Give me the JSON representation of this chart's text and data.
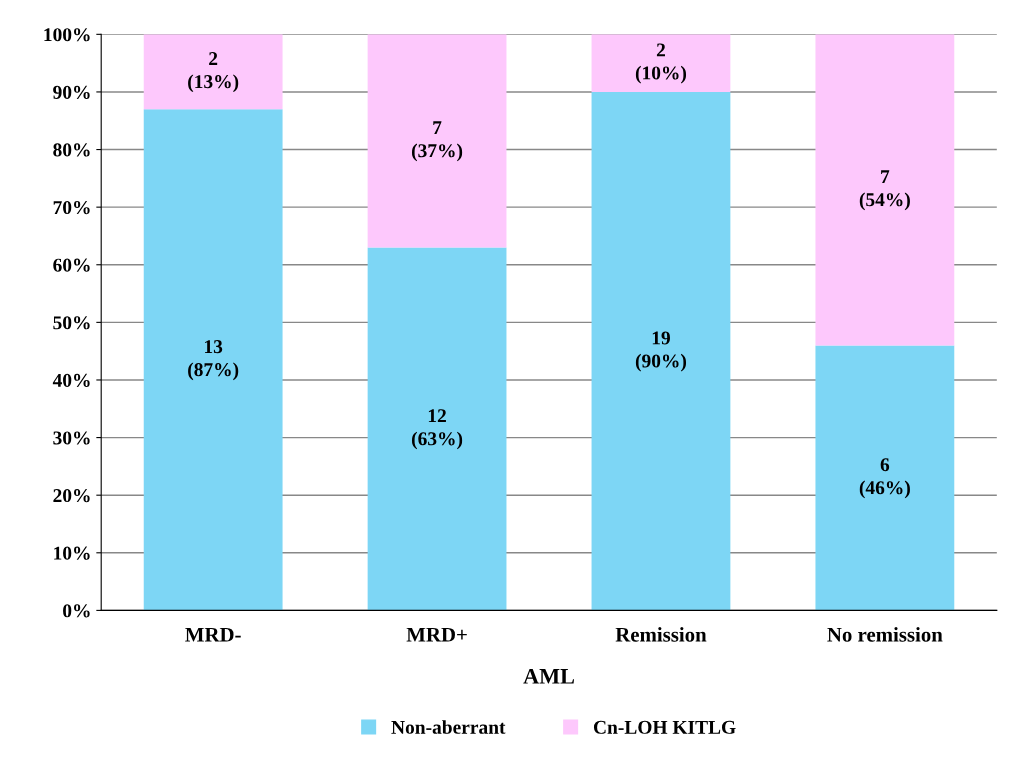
{
  "chart_data": {
    "type": "bar",
    "stacked": true,
    "xlabel": "AML",
    "categories": [
      "MRD-",
      "MRD+",
      "Remission",
      "No remission"
    ],
    "series": [
      {
        "name": "Non-aberrant",
        "color": "#7dd6f5",
        "values": [
          87,
          63,
          90,
          46
        ],
        "value_labels": [
          "13\n(87%)",
          "12\n(63%)",
          "19\n(90%)",
          "6\n(46%)"
        ]
      },
      {
        "name": "Cn-LOH KITLG",
        "color": "#fdc8fc",
        "values": [
          13,
          37,
          10,
          54
        ],
        "value_labels": [
          "2\n(13%)",
          "7\n(37%)",
          "2\n(10%)",
          "7\n(54%)"
        ]
      }
    ],
    "ylim": [
      0,
      100
    ],
    "yticks": [
      {
        "value": 0,
        "label": "0%"
      },
      {
        "value": 10,
        "label": "10%"
      },
      {
        "value": 20,
        "label": "20%"
      },
      {
        "value": 30,
        "label": "30%"
      },
      {
        "value": 40,
        "label": "40%"
      },
      {
        "value": 50,
        "label": "50%"
      },
      {
        "value": 60,
        "label": "60%"
      },
      {
        "value": 70,
        "label": "70%"
      },
      {
        "value": 80,
        "label": "80%"
      },
      {
        "value": 90,
        "label": "90%"
      },
      {
        "value": 100,
        "label": "100%"
      }
    ],
    "grid": "y",
    "legend": "bottom"
  }
}
